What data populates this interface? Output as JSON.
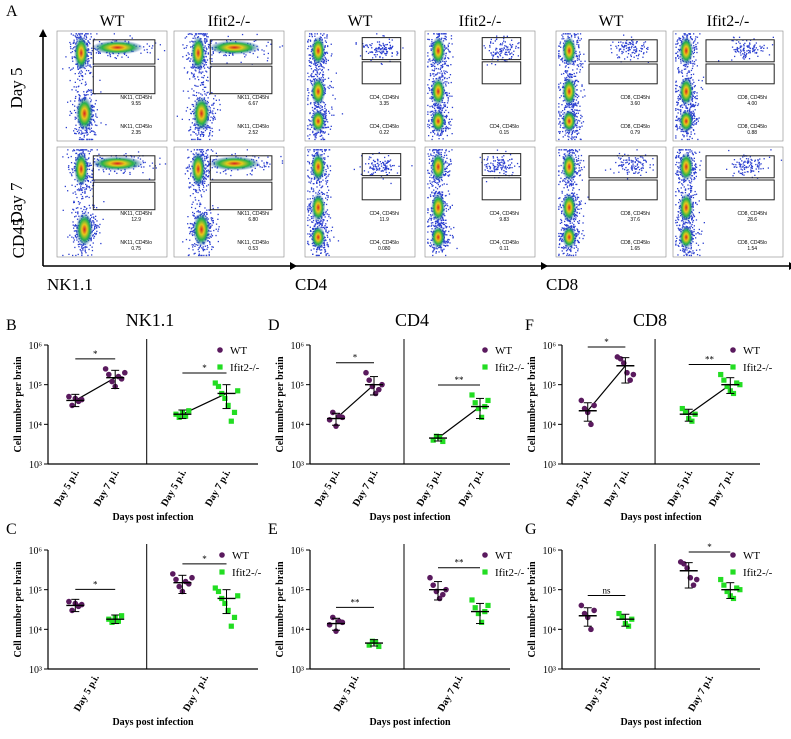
{
  "figure": {
    "flow": {
      "panel_label": "A",
      "row_labels": [
        "Day 5",
        "Day 7"
      ],
      "y_marker": "CD45",
      "groups": [
        {
          "x_marker": "NK1.1",
          "headers": [
            "WT",
            "Ifit2-/-"
          ],
          "gates": [
            [
              {
                "upper": "",
                "lower": "NK11, CD45hi\n9.55",
                "low": "NK11, CD45lo\n2.35"
              },
              {
                "upper": "",
                "lower": "NK11, CD45hi\n6.67",
                "low": "NK11, CD45lo\n2.52"
              }
            ],
            [
              {
                "upper": "",
                "lower": "NK11, CD45hi\n12.9",
                "low": "NK11, CD45lo\n0.75"
              },
              {
                "upper": "",
                "lower": "NK11, CD45hi\n6.80",
                "low": "NK11, CD45lo\n0.53"
              }
            ]
          ]
        },
        {
          "x_marker": "CD4",
          "headers": [
            "WT",
            "Ifit2-/-"
          ],
          "gates": [
            [
              {
                "upper": "",
                "lower": "CD4, CD45hi\n3.35",
                "low": "CD4, CD45lo\n0.22"
              },
              {
                "upper": "",
                "lower": "",
                "low": "CD4, CD45lo\n0.15"
              }
            ],
            [
              {
                "upper": "",
                "lower": "CD4, CD45hi\n11.9",
                "low": "CD4, CD45lo\n0.080"
              },
              {
                "upper": "",
                "lower": "CD4, CD45hi\n9.83",
                "low": "CD4, CD45lo\n0.11"
              }
            ]
          ]
        },
        {
          "x_marker": "CD8",
          "headers": [
            "WT",
            "Ifit2-/-"
          ],
          "gates": [
            [
              {
                "upper": "",
                "lower": "CD8, CD45hi\n3.60",
                "low": "CD8, CD45lo\n0.79"
              },
              {
                "upper": "",
                "lower": "CD8, CD45hi\n4.00",
                "low": "CD8, CD45lo\n0.88"
              }
            ],
            [
              {
                "upper": "",
                "lower": "CD8, CD45hi\n37.6",
                "low": "CD8, CD45lo\n1.65"
              },
              {
                "upper": "",
                "lower": "CD8, CD45hi\n28.6",
                "low": "CD8, CD45lo\n1.54"
              }
            ]
          ]
        }
      ]
    },
    "colors": {
      "WT": "#5a1a5e",
      "KO": "#22dd22",
      "text": "#000000"
    }
  },
  "chart_data": [
    {
      "panel": "B",
      "type": "scatter",
      "title": "NK1.1",
      "ylabel": "Cell number per brain",
      "xlabel": "Days post infection",
      "yscale": "log",
      "ylim": [
        1000,
        1000000
      ],
      "yticks": [
        "10³",
        "10⁴",
        "10⁵",
        "10⁶"
      ],
      "categories": [
        "Day 5 p.i.",
        "Day 7 p.i.",
        "Day 5 p.i.",
        "Day 7 p.i."
      ],
      "layout": "by-genotype",
      "connect": true,
      "legend": [
        "WT",
        "Ifit2-/-"
      ],
      "series": [
        {
          "name": "WT",
          "groups": [
            {
              "mean": 40000,
              "sd": [
                28000,
                57000
              ],
              "points": [
                50000,
                30000,
                45000,
                38000,
                42000
              ]
            },
            {
              "mean": 150000,
              "sd": [
                80000,
                230000
              ],
              "points": [
                250000,
                180000,
                120000,
                90000,
                160000,
                140000,
                200000
              ]
            }
          ]
        },
        {
          "name": "Ifit2-/-",
          "groups": [
            {
              "mean": 18000,
              "sd": [
                14000,
                23000
              ],
              "points": [
                18000,
                15000,
                20000,
                16000,
                22000
              ]
            },
            {
              "mean": 60000,
              "sd": [
                25000,
                100000
              ],
              "points": [
                110000,
                90000,
                60000,
                45000,
                30000,
                12000,
                20000,
                70000
              ]
            }
          ]
        }
      ],
      "significance": [
        {
          "between": [
            0,
            1
          ],
          "label": "*"
        },
        {
          "between": [
            2,
            3
          ],
          "label": "*"
        }
      ]
    },
    {
      "panel": "D",
      "type": "scatter",
      "title": "CD4",
      "ylabel": "Cell number per brain",
      "xlabel": "Days post infection",
      "yscale": "log",
      "ylim": [
        1000,
        1000000
      ],
      "yticks": [
        "10³",
        "10⁴",
        "10⁵",
        "10⁶"
      ],
      "categories": [
        "Day 5 p.i.",
        "Day 7 p.i.",
        "Day 5 p.i.",
        "Day 7 p.i."
      ],
      "layout": "by-genotype",
      "connect": true,
      "legend": [
        "WT",
        "Ifit2-/-"
      ],
      "series": [
        {
          "name": "WT",
          "groups": [
            {
              "mean": 14000,
              "sd": [
                9500,
                19000
              ],
              "points": [
                13000,
                20000,
                9000,
                16000,
                15000
              ]
            },
            {
              "mean": 100000,
              "sd": [
                55000,
                160000
              ],
              "points": [
                200000,
                130000,
                90000,
                60000,
                75000,
                100000
              ]
            }
          ]
        },
        {
          "name": "Ifit2-/-",
          "groups": [
            {
              "mean": 4500,
              "sd": [
                3800,
                5500
              ],
              "points": [
                4000,
                5000,
                4800,
                3700
              ]
            },
            {
              "mean": 28000,
              "sd": [
                14000,
                45000
              ],
              "points": [
                55000,
                35000,
                25000,
                15000,
                28000,
                40000
              ]
            }
          ]
        }
      ],
      "significance": [
        {
          "between": [
            0,
            1
          ],
          "label": "*"
        },
        {
          "between": [
            2,
            3
          ],
          "label": "**"
        }
      ]
    },
    {
      "panel": "F",
      "type": "scatter",
      "title": "CD8",
      "ylabel": "Cell number per brain",
      "xlabel": "Days post infection",
      "yscale": "log",
      "ylim": [
        1000,
        1000000
      ],
      "yticks": [
        "10³",
        "10⁴",
        "10⁵",
        "10⁶"
      ],
      "categories": [
        "Day 5 p.i.",
        "Day 7 p.i.",
        "Day 5 p.i.",
        "Day 7 p.i."
      ],
      "layout": "by-genotype",
      "connect": true,
      "legend": [
        "WT",
        "Ifit2-/-"
      ],
      "series": [
        {
          "name": "WT",
          "groups": [
            {
              "mean": 22000,
              "sd": [
                12000,
                35000
              ],
              "points": [
                40000,
                25000,
                20000,
                10000,
                30000
              ]
            },
            {
              "mean": 300000,
              "sd": [
                110000,
                480000
              ],
              "points": [
                500000,
                450000,
                350000,
                200000,
                130000,
                180000
              ]
            }
          ]
        },
        {
          "name": "Ifit2-/-",
          "groups": [
            {
              "mean": 18000,
              "sd": [
                12000,
                24000
              ],
              "points": [
                25000,
                20000,
                14000,
                12000,
                18000
              ]
            },
            {
              "mean": 100000,
              "sd": [
                60000,
                150000
              ],
              "points": [
                180000,
                130000,
                90000,
                70000,
                60000,
                110000,
                100000
              ]
            }
          ]
        }
      ],
      "significance": [
        {
          "between": [
            0,
            1
          ],
          "label": "*"
        },
        {
          "between": [
            2,
            3
          ],
          "label": "**"
        }
      ]
    },
    {
      "panel": "C",
      "type": "scatter",
      "title": "",
      "ylabel": "Cell number per brain",
      "xlabel": "Days post infection",
      "yscale": "log",
      "ylim": [
        1000,
        1000000
      ],
      "yticks": [
        "10³",
        "10⁴",
        "10⁵",
        "10⁶"
      ],
      "categories": [
        "Day 5 p.i.",
        "Day 7 p.i."
      ],
      "layout": "by-day",
      "connect": false,
      "legend": [
        "WT",
        "Ifit2-/-"
      ],
      "series": [
        {
          "name": "WT",
          "groups": [
            {
              "mean": 40000,
              "sd": [
                28000,
                57000
              ],
              "points": [
                50000,
                30000,
                45000,
                38000,
                42000
              ]
            },
            {
              "mean": 150000,
              "sd": [
                80000,
                230000
              ],
              "points": [
                250000,
                180000,
                120000,
                90000,
                160000,
                140000,
                200000
              ]
            }
          ]
        },
        {
          "name": "Ifit2-/-",
          "groups": [
            {
              "mean": 18000,
              "sd": [
                14000,
                23000
              ],
              "points": [
                18000,
                15000,
                20000,
                16000,
                22000
              ]
            },
            {
              "mean": 60000,
              "sd": [
                25000,
                100000
              ],
              "points": [
                110000,
                90000,
                60000,
                45000,
                30000,
                12000,
                20000,
                70000
              ]
            }
          ]
        }
      ],
      "significance": [
        {
          "between": [
            0,
            1
          ],
          "label": "*"
        },
        {
          "between": [
            2,
            3
          ],
          "label": "*"
        }
      ]
    },
    {
      "panel": "E",
      "type": "scatter",
      "title": "",
      "ylabel": "Cell number per brain",
      "xlabel": "Days post infection",
      "yscale": "log",
      "ylim": [
        1000,
        1000000
      ],
      "yticks": [
        "10³",
        "10⁴",
        "10⁵",
        "10⁶"
      ],
      "categories": [
        "Day 5 p.i.",
        "Day 7 p.i."
      ],
      "layout": "by-day",
      "connect": false,
      "legend": [
        "WT",
        "Ifit2-/-"
      ],
      "series": [
        {
          "name": "WT",
          "groups": [
            {
              "mean": 14000,
              "sd": [
                9500,
                19000
              ],
              "points": [
                13000,
                20000,
                9000,
                16000,
                15000
              ]
            },
            {
              "mean": 100000,
              "sd": [
                55000,
                160000
              ],
              "points": [
                200000,
                130000,
                90000,
                60000,
                75000,
                100000
              ]
            }
          ]
        },
        {
          "name": "Ifit2-/-",
          "groups": [
            {
              "mean": 4500,
              "sd": [
                3800,
                5500
              ],
              "points": [
                4000,
                5000,
                4800,
                3700
              ]
            },
            {
              "mean": 28000,
              "sd": [
                14000,
                45000
              ],
              "points": [
                55000,
                35000,
                25000,
                15000,
                28000,
                40000
              ]
            }
          ]
        }
      ],
      "significance": [
        {
          "between": [
            0,
            1
          ],
          "label": "**"
        },
        {
          "between": [
            2,
            3
          ],
          "label": "**"
        }
      ]
    },
    {
      "panel": "G",
      "type": "scatter",
      "title": "",
      "ylabel": "Cell number per brain",
      "xlabel": "Days post infection",
      "yscale": "log",
      "ylim": [
        1000,
        1000000
      ],
      "yticks": [
        "10³",
        "10⁴",
        "10⁵",
        "10⁶"
      ],
      "categories": [
        "Day 5 p.i.",
        "Day 7 p.i."
      ],
      "layout": "by-day",
      "connect": false,
      "legend": [
        "WT",
        "Ifit2-/-"
      ],
      "series": [
        {
          "name": "WT",
          "groups": [
            {
              "mean": 22000,
              "sd": [
                12000,
                35000
              ],
              "points": [
                40000,
                25000,
                20000,
                10000,
                30000
              ]
            },
            {
              "mean": 300000,
              "sd": [
                110000,
                480000
              ],
              "points": [
                500000,
                450000,
                350000,
                200000,
                130000,
                180000
              ]
            }
          ]
        },
        {
          "name": "Ifit2-/-",
          "groups": [
            {
              "mean": 18000,
              "sd": [
                12000,
                24000
              ],
              "points": [
                25000,
                20000,
                14000,
                12000,
                18000
              ]
            },
            {
              "mean": 100000,
              "sd": [
                60000,
                150000
              ],
              "points": [
                180000,
                130000,
                90000,
                70000,
                60000,
                110000,
                100000
              ]
            }
          ]
        }
      ],
      "significance": [
        {
          "between": [
            0,
            1
          ],
          "label": "ns"
        },
        {
          "between": [
            2,
            3
          ],
          "label": "*"
        }
      ]
    }
  ]
}
